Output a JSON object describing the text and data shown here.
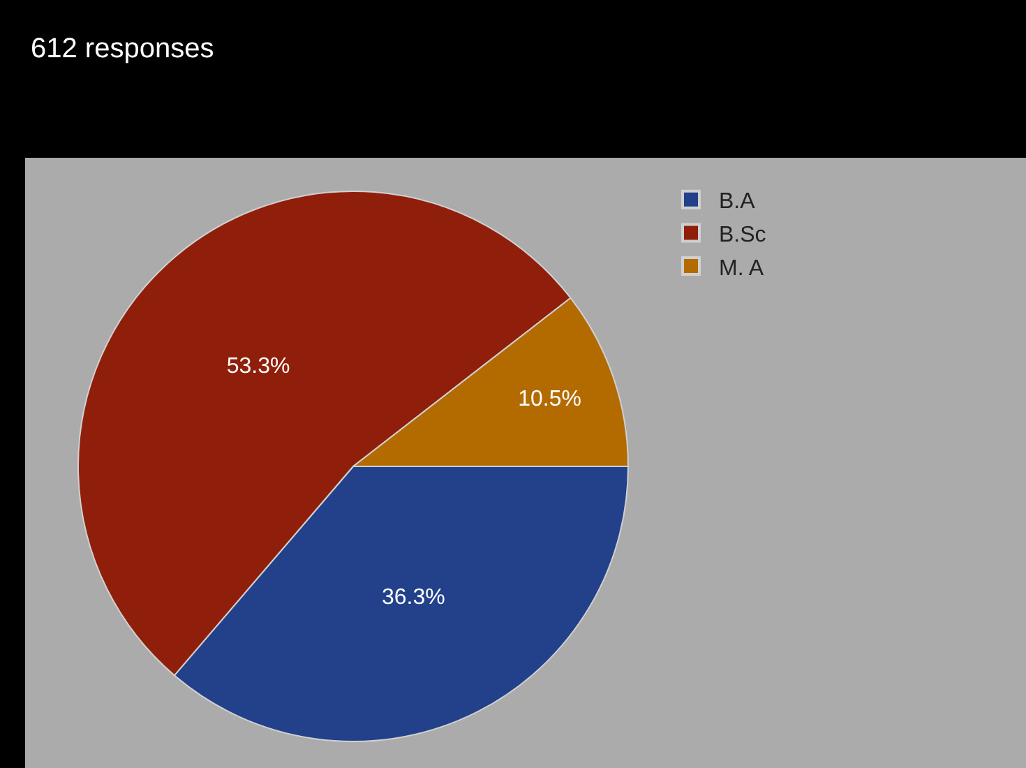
{
  "chart_data": {
    "type": "pie",
    "title": "612 responses",
    "categories": [
      "B.A",
      "B.Sc",
      "M. A"
    ],
    "values": [
      36.3,
      53.3,
      10.5
    ],
    "colors": [
      "#22418a",
      "#8f1f0b",
      "#b36b00"
    ],
    "value_labels": [
      "36.3%",
      "53.3%",
      "10.5%"
    ],
    "legend": "top right"
  }
}
